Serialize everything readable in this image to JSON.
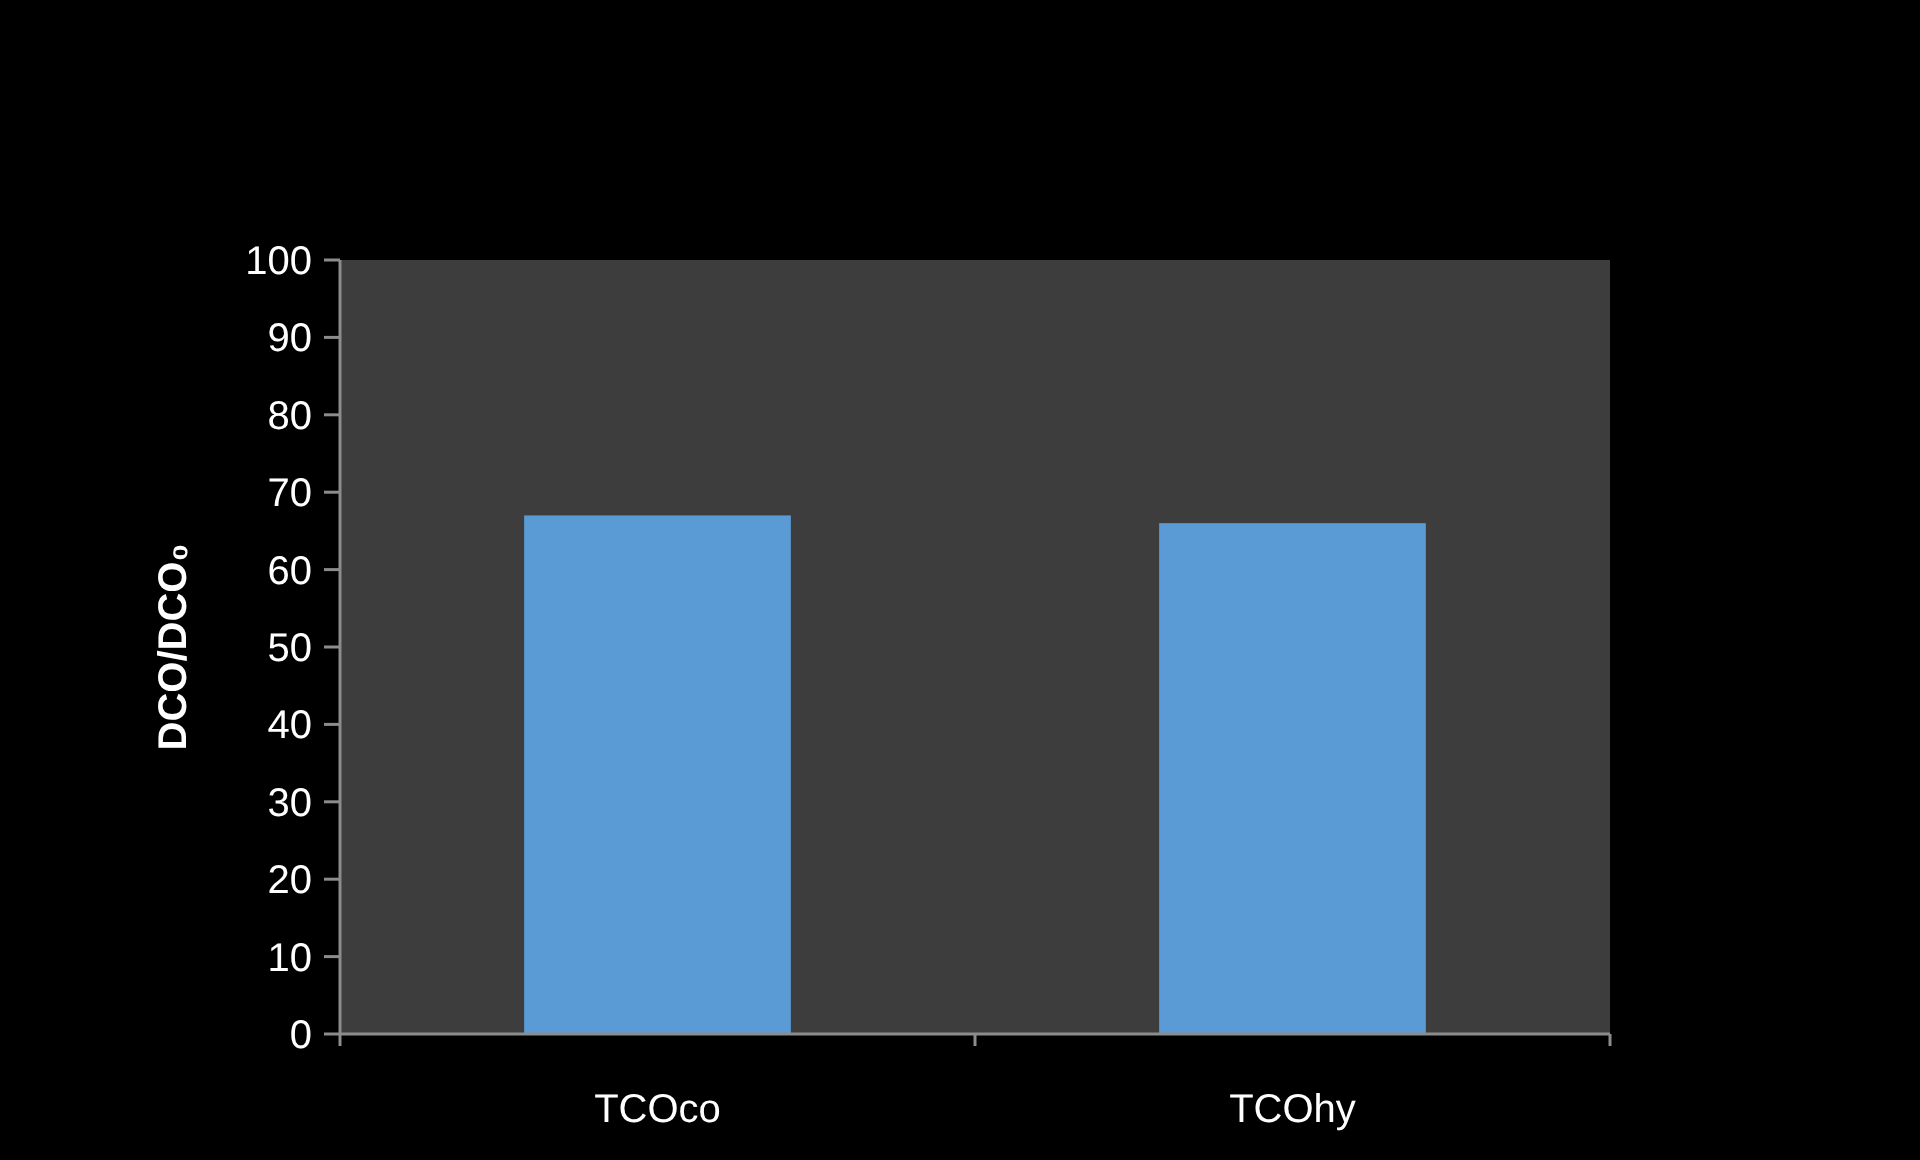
{
  "chart_data": {
    "type": "bar",
    "ylabel": "DCO/DCO₀",
    "categories": [
      "TCOco",
      "TCOhy"
    ],
    "values": [
      67,
      66
    ],
    "color": "#5b9bd5",
    "ylim": [
      0,
      100
    ],
    "yticks": [
      0,
      10,
      20,
      30,
      40,
      50,
      60,
      70,
      80,
      90,
      100
    ]
  }
}
